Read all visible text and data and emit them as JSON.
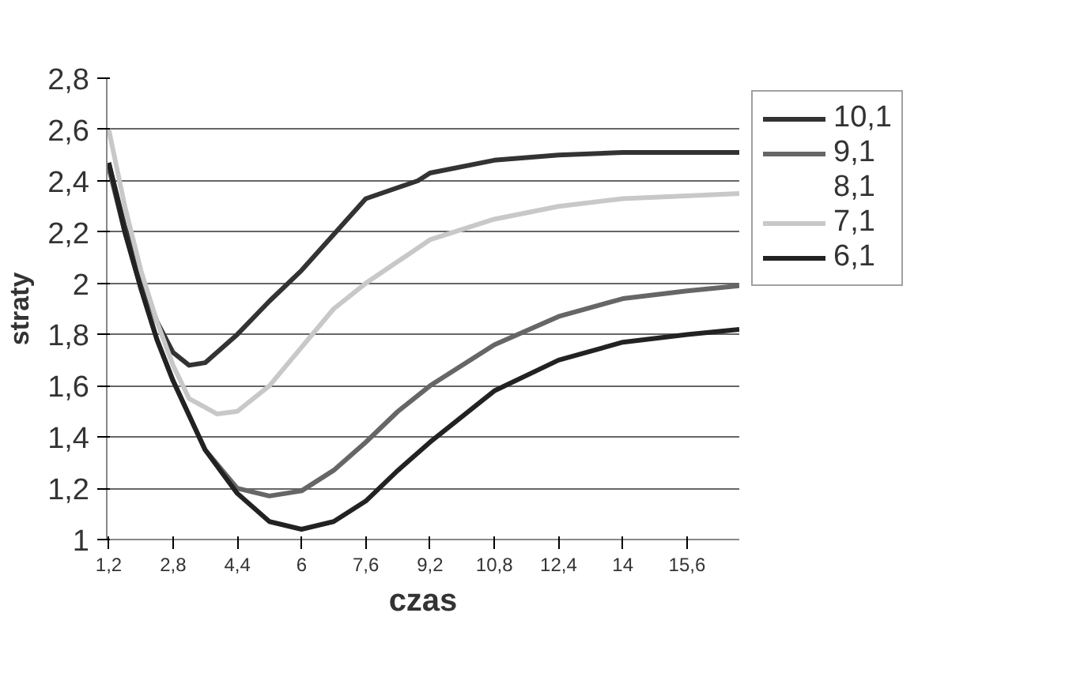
{
  "chart_data": {
    "type": "line",
    "xlabel": "czas",
    "ylabel": "straty",
    "grid": "y",
    "legend": "right",
    "marker": "none",
    "line_style": "solid",
    "xlim": [
      1.15,
      16.9
    ],
    "ylim": [
      1,
      2.8
    ],
    "xticks": [
      {
        "value": 1.2,
        "label": "1,2"
      },
      {
        "value": 2.8,
        "label": "2,8"
      },
      {
        "value": 4.4,
        "label": "4,4"
      },
      6,
      {
        "value": 7.6,
        "label": "7,6"
      },
      {
        "value": 9.2,
        "label": "9,2"
      },
      {
        "value": 10.8,
        "label": "10,8"
      },
      {
        "value": 12.4,
        "label": "12,4"
      },
      14,
      {
        "value": 15.6,
        "label": "15,6"
      }
    ],
    "yticks": [
      1,
      {
        "value": 1.2,
        "label": "1,2"
      },
      {
        "value": 1.4,
        "label": "1,4"
      },
      {
        "value": 1.6,
        "label": "1,6"
      },
      {
        "value": 1.8,
        "label": "1,8"
      },
      2,
      {
        "value": 2.2,
        "label": "2,2"
      },
      {
        "value": 2.4,
        "label": "2,4"
      },
      {
        "value": 2.6,
        "label": "2,6"
      },
      {
        "value": 2.8,
        "label": "2,8"
      }
    ],
    "series": [
      {
        "name": "10,1",
        "color": "#333333",
        "x": [
          1.2,
          1.6,
          2.0,
          2.4,
          2.8,
          3.2,
          3.6,
          4.4,
          5.2,
          6,
          7.6,
          8.9,
          9.2,
          10.8,
          12.4,
          14,
          16.9
        ],
        "values": [
          2.47,
          2.22,
          2.03,
          1.85,
          1.73,
          1.68,
          1.69,
          1.8,
          1.93,
          2.05,
          2.33,
          2.4,
          2.43,
          2.48,
          2.5,
          2.51,
          2.51
        ]
      },
      {
        "name": "9,1",
        "color": "#666666",
        "x": [
          1.2,
          1.6,
          2.0,
          2.4,
          2.8,
          3.6,
          4.4,
          5.2,
          6,
          6.8,
          7.6,
          8.4,
          9.2,
          10.8,
          12.4,
          14,
          15.6,
          16.9
        ],
        "values": [
          2.45,
          2.2,
          1.98,
          1.78,
          1.62,
          1.35,
          1.2,
          1.17,
          1.19,
          1.27,
          1.38,
          1.5,
          1.6,
          1.76,
          1.87,
          1.94,
          1.97,
          1.99
        ]
      },
      {
        "name": "8,1",
        "values": [
          null
        ]
      },
      {
        "name": "7,1",
        "color": "#c8c8c8",
        "x": [
          1.2,
          1.6,
          2.0,
          2.4,
          2.8,
          3.2,
          3.9,
          4.4,
          5.2,
          6,
          6.8,
          7.6,
          9.2,
          10.8,
          12.4,
          14,
          16.9
        ],
        "values": [
          2.6,
          2.3,
          2.05,
          1.85,
          1.68,
          1.55,
          1.49,
          1.5,
          1.6,
          1.75,
          1.9,
          2.0,
          2.17,
          2.25,
          2.3,
          2.33,
          2.35
        ]
      },
      {
        "name": "6,1",
        "color": "#222222",
        "x": [
          1.2,
          1.6,
          2.0,
          2.4,
          2.8,
          3.6,
          4.4,
          5.2,
          6,
          6.8,
          7.6,
          8.4,
          9.2,
          10.8,
          12.4,
          14,
          15.6,
          16.9
        ],
        "values": [
          2.47,
          2.2,
          1.98,
          1.78,
          1.62,
          1.35,
          1.18,
          1.07,
          1.04,
          1.07,
          1.15,
          1.27,
          1.38,
          1.58,
          1.7,
          1.77,
          1.8,
          1.82
        ]
      }
    ]
  }
}
